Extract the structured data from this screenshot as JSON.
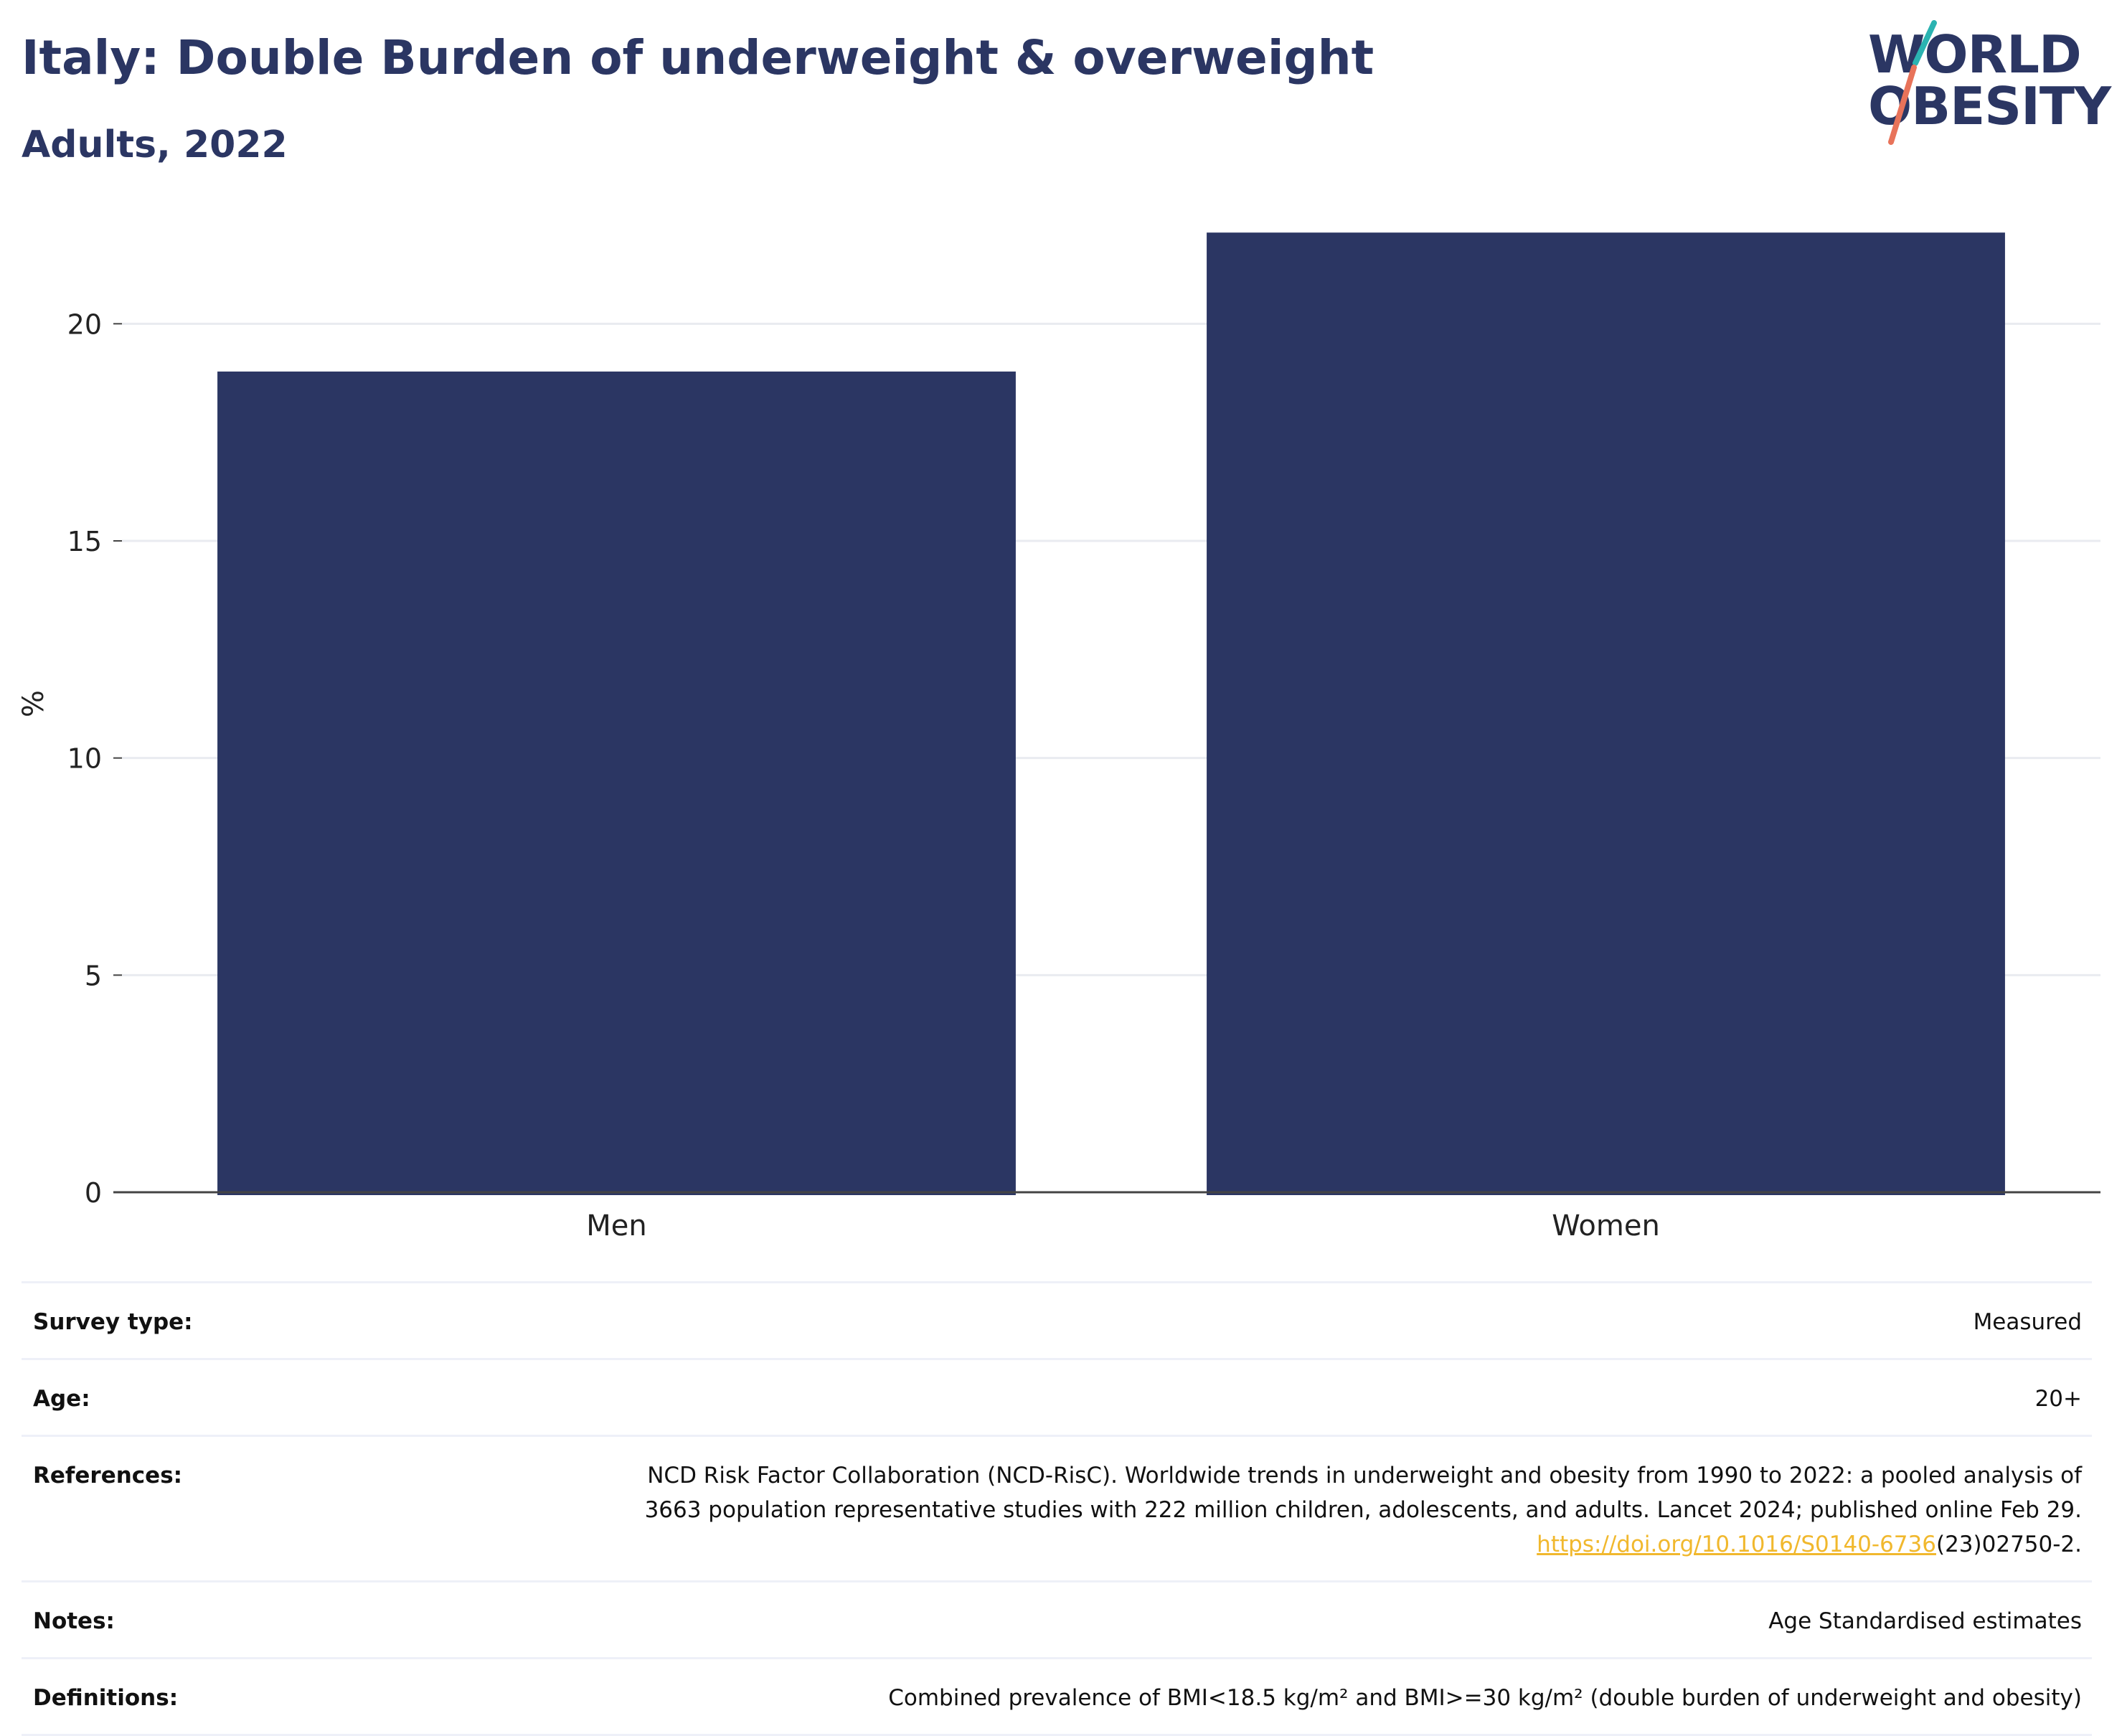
{
  "title": "Italy: Double Burden of underweight & overweight",
  "subtitle": "Adults, 2022",
  "logo": {
    "line1": "WORLD",
    "line2": "OBESITY",
    "colors": {
      "navy": "#2b3663",
      "teal": "#2bb3b1",
      "coral": "#e8735a"
    }
  },
  "chart_data": {
    "type": "bar",
    "categories": [
      "Men",
      "Women"
    ],
    "values": [
      18.9,
      22.1
    ],
    "ylabel": "%",
    "xlabel": "",
    "ylim": [
      0,
      22.5
    ],
    "yticks": [
      0,
      5,
      10,
      15,
      20
    ],
    "grid": true,
    "bar_color": "#2b3663"
  },
  "meta": {
    "survey_type": {
      "label": "Survey type:",
      "value": "Measured"
    },
    "age": {
      "label": "Age:",
      "value": "20+"
    },
    "references": {
      "label": "References:",
      "line1": "NCD Risk Factor Collaboration (NCD-RisC). Worldwide trends in underweight and obesity from 1990 to 2022: a pooled analysis of",
      "line2": "3663 population representative studies with 222 million children, adolescents, and adults. Lancet 2024; published online Feb 29.",
      "link": "https://doi.org/10.1016/S0140-6736",
      "link_suffix": "(23)02750-2."
    },
    "notes": {
      "label": "Notes:",
      "value": "Age Standardised estimates"
    },
    "definitions": {
      "label": "Definitions:",
      "value": "Combined prevalence of BMI<18.5 kg/m² and BMI>=30 kg/m² (double burden of underweight and obesity)"
    }
  }
}
